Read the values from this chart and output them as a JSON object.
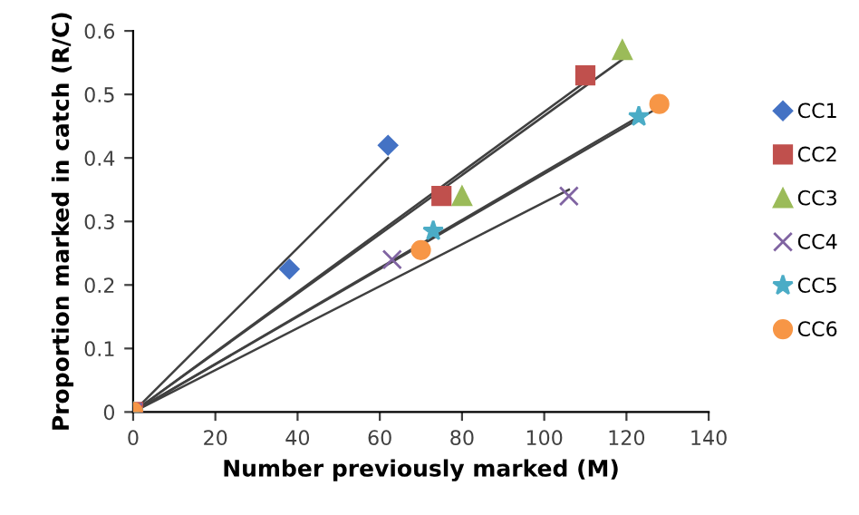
{
  "chart_data": {
    "type": "scatter",
    "xlabel": "Number previously marked (M)",
    "ylabel": "Proportion marked in catch (R/C)",
    "xlim": [
      0,
      140
    ],
    "ylim": [
      0,
      0.6
    ],
    "xticks": [
      0,
      20,
      40,
      60,
      80,
      100,
      120,
      140
    ],
    "yticks": [
      0,
      0.1,
      0.2,
      0.3,
      0.4,
      0.5,
      0.6
    ],
    "grid": false,
    "legend": "right",
    "series": [
      {
        "name": "CC1",
        "color": "#4472c4",
        "marker": "diamond",
        "x": [
          0,
          38,
          62
        ],
        "values": [
          0,
          0.225,
          0.42
        ]
      },
      {
        "name": "CC2",
        "color": "#c0504d",
        "marker": "square",
        "x": [
          0,
          75,
          110
        ],
        "values": [
          0,
          0.34,
          0.53
        ]
      },
      {
        "name": "CC3",
        "color": "#9bbb59",
        "marker": "triangle",
        "x": [
          0,
          80,
          119
        ],
        "values": [
          0,
          0.34,
          0.57
        ]
      },
      {
        "name": "CC4",
        "color": "#8064a2",
        "marker": "cross",
        "x": [
          0,
          63,
          106
        ],
        "values": [
          0,
          0.24,
          0.34
        ]
      },
      {
        "name": "CC5",
        "color": "#4bacc6",
        "marker": "star",
        "x": [
          0,
          73,
          123
        ],
        "values": [
          0,
          0.285,
          0.465
        ]
      },
      {
        "name": "CC6",
        "color": "#f79646",
        "marker": "circle",
        "x": [
          0,
          70,
          128
        ],
        "values": [
          0,
          0.255,
          0.485
        ]
      },
      {
        "type": "line",
        "color": "#404040",
        "x": [
          0,
          62
        ],
        "values": [
          0,
          0.4
        ]
      },
      {
        "type": "line",
        "color": "#404040",
        "x": [
          0,
          110
        ],
        "values": [
          0,
          0.52
        ]
      },
      {
        "type": "line",
        "color": "#404040",
        "x": [
          0,
          119
        ],
        "values": [
          0,
          0.555
        ]
      },
      {
        "type": "line",
        "color": "#404040",
        "x": [
          0,
          106
        ],
        "values": [
          0,
          0.35
        ]
      },
      {
        "type": "line",
        "color": "#404040",
        "x": [
          0,
          123
        ],
        "values": [
          0,
          0.465
        ]
      },
      {
        "type": "line",
        "color": "#404040",
        "x": [
          0,
          128
        ],
        "values": [
          0,
          0.48
        ]
      }
    ]
  }
}
